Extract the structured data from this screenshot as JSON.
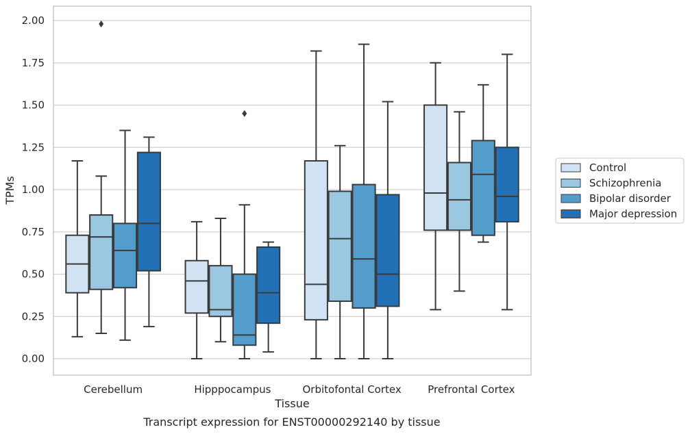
{
  "caption": "Transcript expression for ENST00000292140 by tissue",
  "colors": {
    "Control": "#d1e2f2",
    "Schizophrenia": "#9ac8e0",
    "Bipolar disorder": "#529dcc",
    "Major depression": "#2270b5",
    "edge": "#3a3a3a",
    "grid": "#d0d0d0",
    "frame": "#c8c8c8"
  },
  "chart_data": {
    "type": "boxplot",
    "title": "",
    "xlabel": "Tissue",
    "ylabel": "TPMs",
    "ylim": [
      -0.1,
      2.08
    ],
    "yticks": [
      0.0,
      0.25,
      0.5,
      0.75,
      1.0,
      1.25,
      1.5,
      1.75,
      2.0
    ],
    "ytick_labels": [
      "0.00",
      "0.25",
      "0.50",
      "0.75",
      "1.00",
      "1.25",
      "1.50",
      "1.75",
      "2.00"
    ],
    "grid": "horizontal",
    "legend_position": "right",
    "categories": [
      "Cerebellum",
      "Hipppocampus",
      "Orbitofontal Cortex",
      "Prefrontal Cortex"
    ],
    "series": [
      {
        "name": "Control",
        "boxes": [
          {
            "whislo": 0.13,
            "q1": 0.39,
            "med": 0.56,
            "q3": 0.73,
            "whishi": 1.17,
            "fliers": []
          },
          {
            "whislo": 0.0,
            "q1": 0.27,
            "med": 0.46,
            "q3": 0.58,
            "whishi": 0.81,
            "fliers": []
          },
          {
            "whislo": 0.0,
            "q1": 0.23,
            "med": 0.44,
            "q3": 1.17,
            "whishi": 1.82,
            "fliers": []
          },
          {
            "whislo": 0.29,
            "q1": 0.76,
            "med": 0.98,
            "q3": 1.5,
            "whishi": 1.75,
            "fliers": []
          }
        ]
      },
      {
        "name": "Schizophrenia",
        "boxes": [
          {
            "whislo": 0.15,
            "q1": 0.41,
            "med": 0.72,
            "q3": 0.85,
            "whishi": 1.08,
            "fliers": [
              1.98
            ]
          },
          {
            "whislo": 0.1,
            "q1": 0.25,
            "med": 0.29,
            "q3": 0.55,
            "whishi": 0.83,
            "fliers": []
          },
          {
            "whislo": 0.0,
            "q1": 0.34,
            "med": 0.71,
            "q3": 0.99,
            "whishi": 1.26,
            "fliers": []
          },
          {
            "whislo": 0.4,
            "q1": 0.76,
            "med": 0.94,
            "q3": 1.16,
            "whishi": 1.46,
            "fliers": []
          }
        ]
      },
      {
        "name": "Bipolar disorder",
        "boxes": [
          {
            "whislo": 0.11,
            "q1": 0.42,
            "med": 0.64,
            "q3": 0.8,
            "whishi": 1.35,
            "fliers": []
          },
          {
            "whislo": 0.0,
            "q1": 0.08,
            "med": 0.14,
            "q3": 0.5,
            "whishi": 0.91,
            "fliers": [
              1.45
            ]
          },
          {
            "whislo": 0.0,
            "q1": 0.3,
            "med": 0.59,
            "q3": 1.03,
            "whishi": 1.86,
            "fliers": []
          },
          {
            "whislo": 0.69,
            "q1": 0.73,
            "med": 1.09,
            "q3": 1.29,
            "whishi": 1.62,
            "fliers": []
          }
        ]
      },
      {
        "name": "Major depression",
        "boxes": [
          {
            "whislo": 0.19,
            "q1": 0.52,
            "med": 0.8,
            "q3": 1.22,
            "whishi": 1.31,
            "fliers": []
          },
          {
            "whislo": 0.04,
            "q1": 0.21,
            "med": 0.39,
            "q3": 0.66,
            "whishi": 0.69,
            "fliers": []
          },
          {
            "whislo": 0.0,
            "q1": 0.31,
            "med": 0.5,
            "q3": 0.97,
            "whishi": 1.52,
            "fliers": []
          },
          {
            "whislo": 0.29,
            "q1": 0.81,
            "med": 0.96,
            "q3": 1.25,
            "whishi": 1.8,
            "fliers": []
          }
        ]
      }
    ]
  }
}
